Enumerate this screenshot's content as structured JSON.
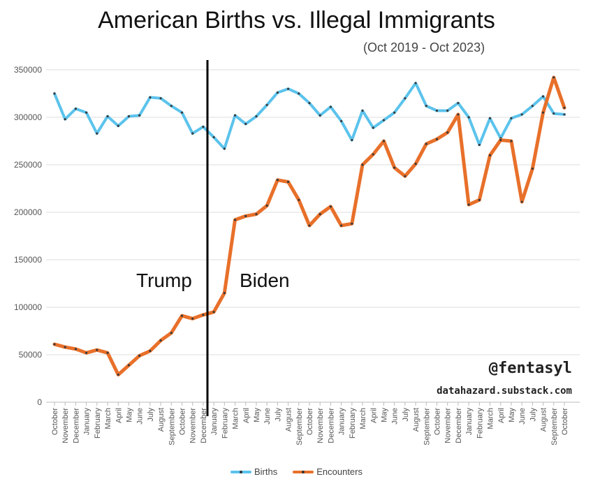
{
  "title": "American Births vs. Illegal Immigrants",
  "subtitle": "(Oct 2019 - Oct 2023)",
  "credit": {
    "handle": "@fentasyl",
    "site": "datahazard.substack.com"
  },
  "annotations": {
    "left_period": "Trump",
    "right_period": "Biden"
  },
  "colors": {
    "births": "#5bc3ec",
    "encounters": "#e8702a",
    "divider": "#000000",
    "grid": "#dddddd"
  },
  "chart_data": {
    "type": "line",
    "title": "American Births vs. Illegal Immigrants",
    "subtitle": "(Oct 2019 - Oct 2023)",
    "xlabel": "",
    "ylabel": "",
    "ylim": [
      0,
      350000
    ],
    "yticks": [
      0,
      50000,
      100000,
      150000,
      200000,
      250000,
      300000,
      350000
    ],
    "grid": true,
    "legend_position": "bottom",
    "divider_after_category": "December 2020",
    "categories": [
      "October",
      "November",
      "December",
      "January",
      "February",
      "March",
      "April",
      "May",
      "June",
      "July",
      "August",
      "September",
      "October",
      "November",
      "December",
      "January",
      "February",
      "March",
      "April",
      "May",
      "June",
      "July",
      "August",
      "September",
      "October",
      "November",
      "December",
      "January",
      "February",
      "March",
      "April",
      "May",
      "June",
      "July",
      "August",
      "September",
      "October",
      "November",
      "December",
      "January",
      "February",
      "March",
      "April",
      "May",
      "June",
      "July",
      "August",
      "September",
      "October"
    ],
    "series": [
      {
        "name": "Births",
        "values": [
          325000,
          298000,
          309000,
          305000,
          283000,
          301000,
          291000,
          301000,
          302000,
          321000,
          320000,
          312000,
          305000,
          283000,
          290000,
          279000,
          267000,
          302000,
          293000,
          301000,
          313000,
          326000,
          330000,
          325000,
          315000,
          302000,
          311000,
          296000,
          276000,
          307000,
          289000,
          297000,
          305000,
          320000,
          336000,
          312000,
          307000,
          307000,
          315000,
          300000,
          271000,
          299000,
          278000,
          299000,
          303000,
          312000,
          322000,
          304000,
          303000
        ]
      },
      {
        "name": "Encounters",
        "values": [
          61000,
          58000,
          56000,
          52000,
          55000,
          52000,
          29000,
          39000,
          49000,
          54000,
          65000,
          73000,
          91000,
          88000,
          92000,
          95000,
          115000,
          192000,
          196000,
          198000,
          207000,
          234000,
          232000,
          213000,
          186000,
          198000,
          206000,
          186000,
          188000,
          250000,
          261000,
          275000,
          247000,
          238000,
          251000,
          272000,
          277000,
          284000,
          303000,
          208000,
          213000,
          260000,
          276000,
          275000,
          211000,
          246000,
          305000,
          342000,
          310000
        ]
      }
    ]
  }
}
